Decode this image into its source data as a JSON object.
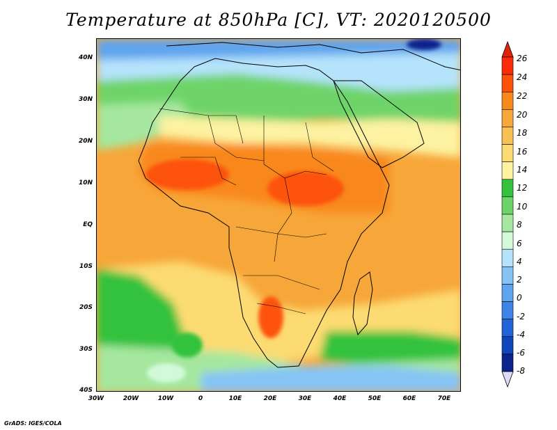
{
  "title": "Temperature at 850hPa [C], VT: 2020120500",
  "credit": "GrADS: IGES/COLA",
  "map": {
    "projection": "lat-lon",
    "lon_range": [
      -30,
      75
    ],
    "lat_range": [
      -40,
      45
    ],
    "variable": "Temperature at 850hPa",
    "units": "C",
    "valid_time": "2020120500"
  },
  "axes": {
    "lat_labels": [
      "40N",
      "30N",
      "20N",
      "10N",
      "EQ",
      "10S",
      "20S",
      "30S",
      "40S"
    ],
    "lon_labels": [
      "30W",
      "20W",
      "10W",
      "0",
      "10E",
      "20E",
      "30E",
      "40E",
      "50E",
      "60E",
      "70E"
    ]
  },
  "colorbar": {
    "labels": [
      "26",
      "24",
      "22",
      "20",
      "18",
      "16",
      "14",
      "12",
      "10",
      "8",
      "6",
      "4",
      "2",
      "0",
      "-2",
      "-4",
      "-6",
      "-8"
    ],
    "colors": [
      "#fe2b08",
      "#fd5309",
      "#f9881b",
      "#f7a739",
      "#f9c054",
      "#fcdb72",
      "#fdf2a1",
      "#33c23c",
      "#6ed469",
      "#a5e79f",
      "#d2f9d8",
      "#b5e3fb",
      "#86c4f5",
      "#5ea4ee",
      "#3e84e6",
      "#2164d8",
      "#0f46bb",
      "#0b238c"
    ],
    "over_color": "#e0240b",
    "under_color": "#ddd9f7"
  },
  "field_regions": [
    {
      "name": "north-cold",
      "value_c": 4
    },
    {
      "name": "sahara-belt",
      "value_c": 10
    },
    {
      "name": "sahel-max",
      "value_c": 23
    },
    {
      "name": "kalahari-max",
      "value_c": 25
    },
    {
      "name": "southern-ocean",
      "value_c": 6
    }
  ]
}
